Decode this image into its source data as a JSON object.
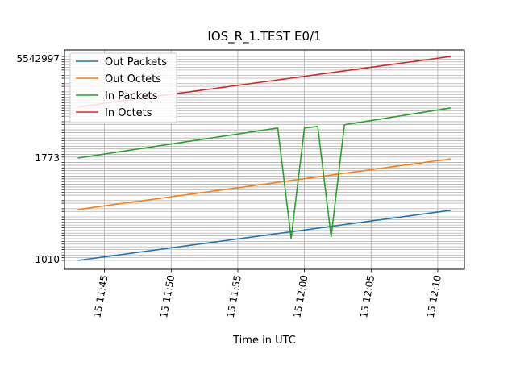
{
  "chart_data": {
    "type": "line",
    "title": "IOS_R_1.TEST E0/1",
    "xlabel": "Time in UTC",
    "ylabel": "",
    "x_date_prefix": "15",
    "x_ticks": [
      "11:45",
      "11:50",
      "11:55",
      "12:00",
      "12:05",
      "12:10"
    ],
    "xlim": [
      "11:42",
      "12:12"
    ],
    "y_tick_labels_visible": [
      "5542997",
      "1773",
      "1010"
    ],
    "grid": true,
    "legend_position": "upper-left",
    "series": [
      {
        "name": "Out Packets",
        "color": "#1f77b4",
        "x": [
          "11:43",
          "12:11"
        ],
        "y": [
          0.0,
          0.246
        ]
      },
      {
        "name": "Out Octets",
        "color": "#ff7f0e",
        "x": [
          "11:43",
          "12:11"
        ],
        "y": [
          0.25,
          0.498
        ]
      },
      {
        "name": "In Packets",
        "color": "#2ca02c",
        "x": [
          "11:43",
          "11:58",
          "11:59",
          "12:00",
          "12:01",
          "12:02",
          "12:03",
          "12:11"
        ],
        "y": [
          0.502,
          0.649,
          0.108,
          0.649,
          0.657,
          0.116,
          0.665,
          0.748
        ]
      },
      {
        "name": "In Octets",
        "color": "#d62728",
        "x": [
          "11:43",
          "12:11"
        ],
        "y": [
          0.752,
          1.0
        ]
      }
    ]
  }
}
